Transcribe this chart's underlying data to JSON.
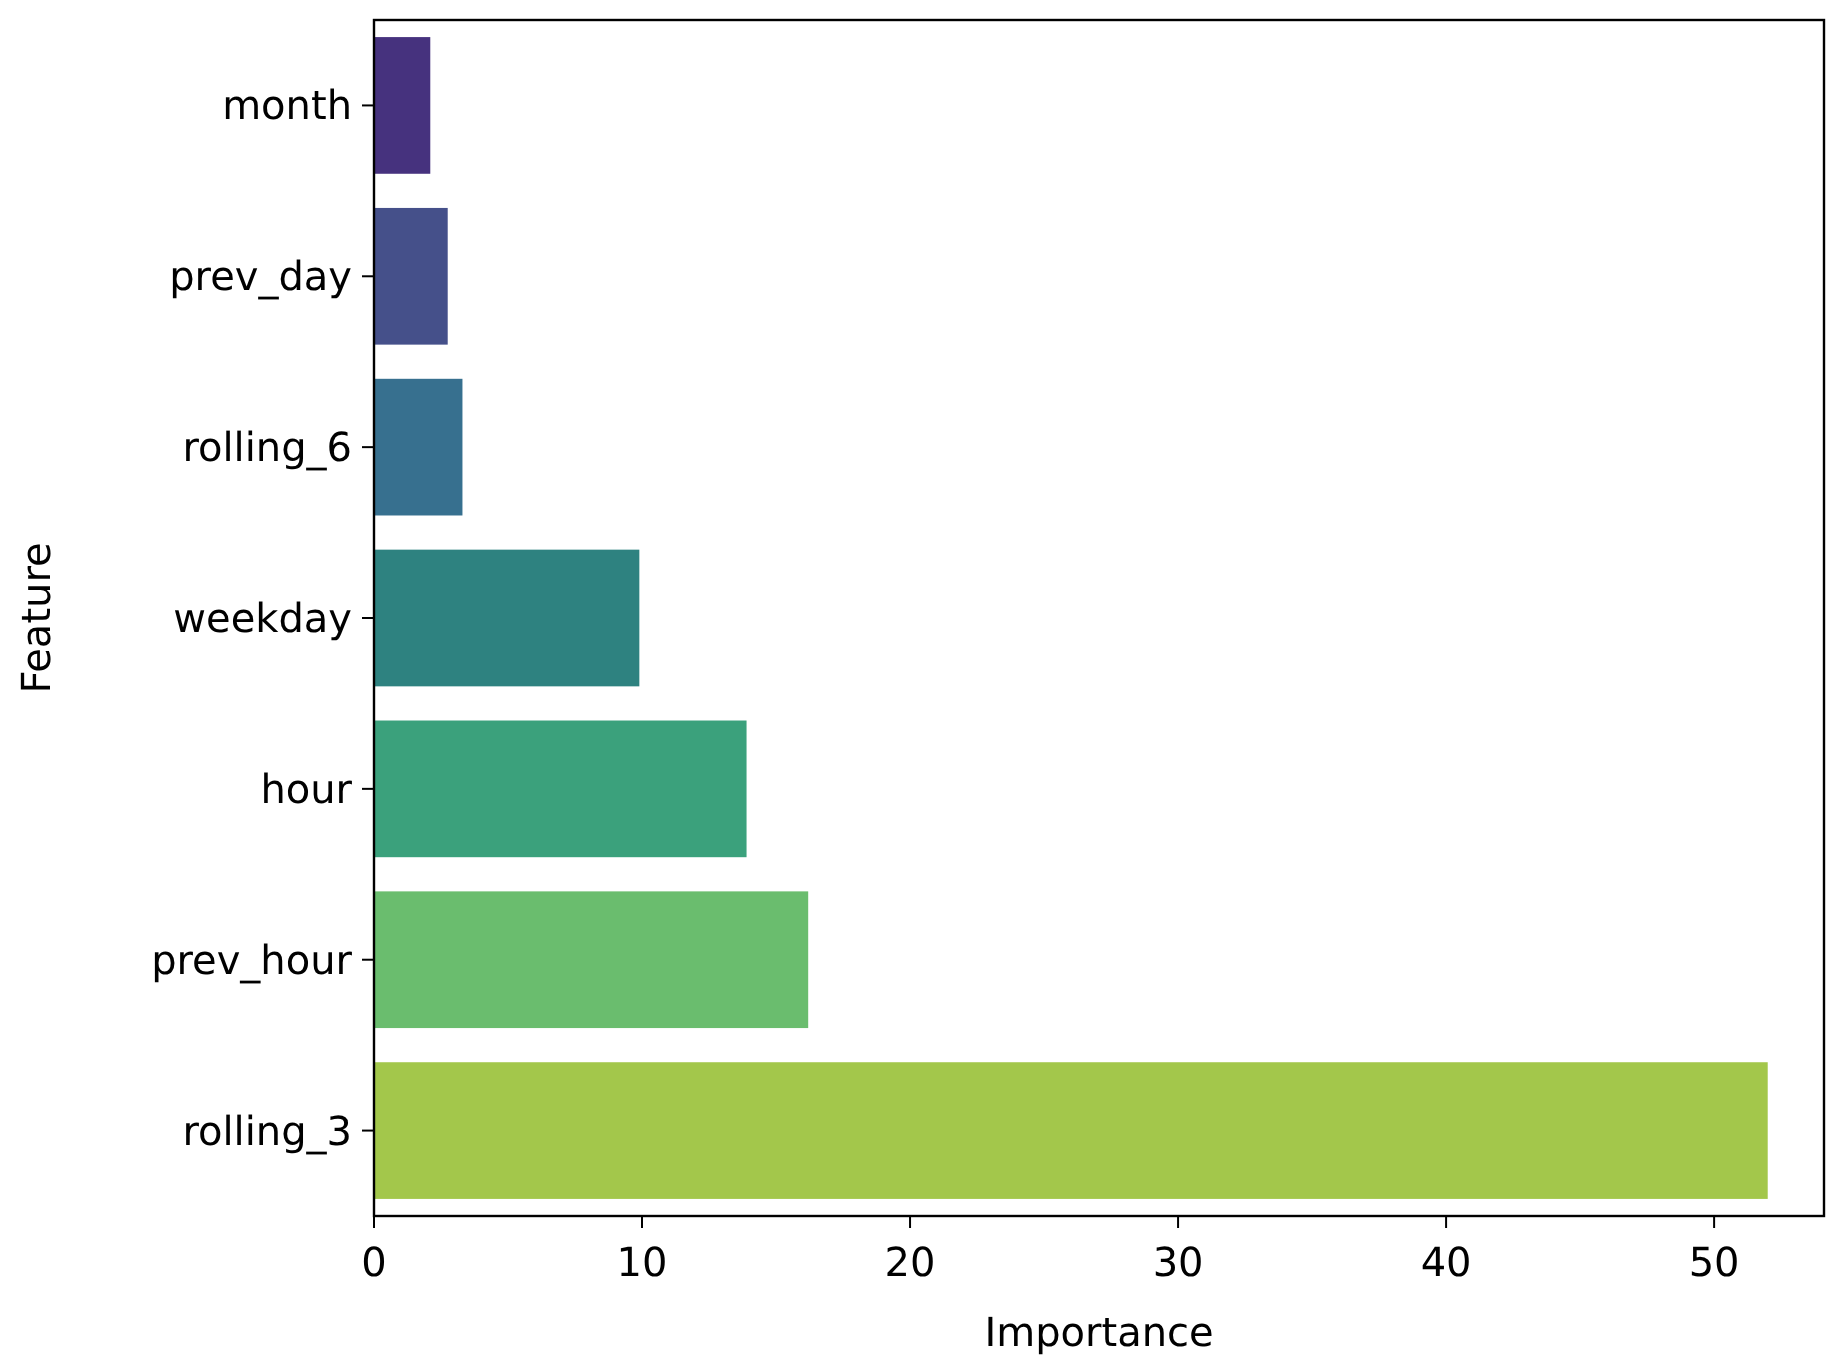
{
  "chart_data": {
    "type": "bar",
    "orientation": "horizontal",
    "xlabel": "Importance",
    "ylabel": "Feature",
    "categories": [
      "month",
      "prev_day",
      "rolling_6",
      "weekday",
      "hour",
      "prev_hour",
      "rolling_3"
    ],
    "values": [
      2.1,
      2.75,
      3.3,
      9.9,
      13.9,
      16.2,
      52.0
    ],
    "colors": [
      "#46327e",
      "#45508a",
      "#37708f",
      "#2e8280",
      "#3ba17c",
      "#6abd6e",
      "#a3c74b"
    ],
    "xlim": [
      0,
      54.1
    ],
    "xticks": [
      0,
      10,
      20,
      30,
      40,
      50
    ],
    "grid": false
  }
}
